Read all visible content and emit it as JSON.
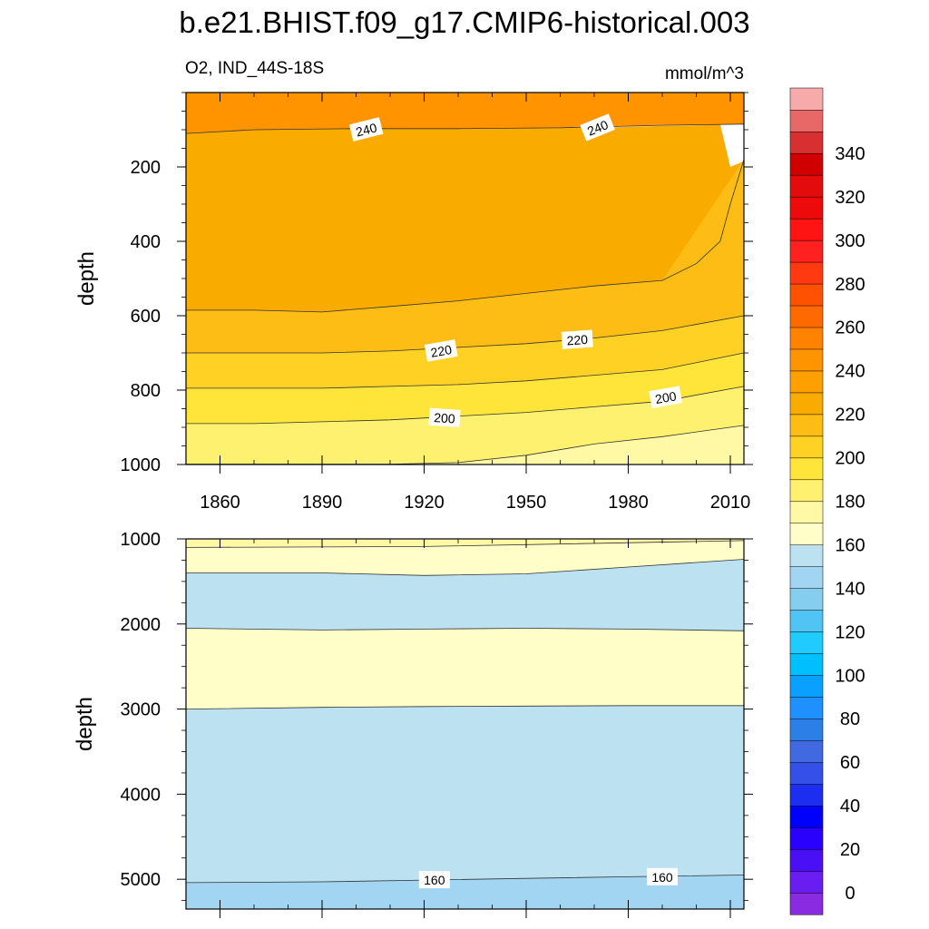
{
  "title": "b.e21.BHIST.f09_g17.CMIP6-historical.003",
  "chart_data": {
    "type": "contour",
    "variable_label": "O2, IND_44S-18S",
    "units_label": "mmol/m^3",
    "x_range": [
      1850,
      2014
    ],
    "x_ticks": [
      1860,
      1890,
      1920,
      1950,
      1980,
      2010
    ],
    "x_tick_labels": [
      "1860",
      "1890",
      "1920",
      "1950",
      "1980",
      "2010"
    ],
    "panels": [
      {
        "name": "upper",
        "ylabel": "depth",
        "y_range": [
          0,
          1000
        ],
        "y_ticks": [
          200,
          400,
          600,
          800,
          1000
        ],
        "y_tick_labels": [
          "200",
          "400",
          "600",
          "800",
          "1000"
        ],
        "bands": [
          {
            "level": 250,
            "color": "#FF9400",
            "x": [
              1850,
              1870,
              1900,
              1930,
              1960,
              1990,
              2014
            ],
            "top": [
              0,
              0,
              0,
              0,
              0,
              0,
              0
            ],
            "bottom": [
              110,
              100,
              97,
              97,
              95,
              88,
              85
            ]
          },
          {
            "level": 240,
            "color": "#FAAB00",
            "x": [
              1850,
              1870,
              1890,
              1910,
              1930,
              1950,
              1970,
              1990,
              2000,
              2007,
              2010,
              2014
            ],
            "top": [
              110,
              100,
              97,
              97,
              97,
              96,
              95,
              90,
              88,
              85,
              200,
              185
            ],
            "bottom": [
              585,
              585,
              590,
              575,
              560,
              540,
              520,
              505,
              460,
              400,
              300,
              180
            ]
          },
          {
            "level": 230,
            "color": "#FDBD14",
            "x": [
              1850,
              1870,
              1890,
              1910,
              1930,
              1950,
              1970,
              1990,
              2014
            ],
            "top": [
              585,
              585,
              590,
              575,
              560,
              540,
              520,
              505,
              180
            ],
            "bottom": [
              700,
              700,
              700,
              695,
              685,
              675,
              660,
              640,
              600
            ]
          },
          {
            "level": 220,
            "color": "#FED124",
            "x": [
              1850,
              1870,
              1890,
              1910,
              1930,
              1950,
              1970,
              1990,
              2014
            ],
            "top": [
              700,
              700,
              700,
              695,
              685,
              675,
              660,
              640,
              600
            ],
            "bottom": [
              795,
              795,
              795,
              790,
              785,
              775,
              760,
              745,
              700
            ]
          },
          {
            "level": 210,
            "color": "#FFE53A",
            "x": [
              1850,
              1870,
              1890,
              1910,
              1930,
              1950,
              1970,
              1990,
              2014
            ],
            "top": [
              795,
              795,
              795,
              790,
              785,
              775,
              760,
              745,
              700
            ],
            "bottom": [
              890,
              890,
              885,
              880,
              870,
              860,
              845,
              830,
              790
            ]
          },
          {
            "level": 200,
            "color": "#FFF170",
            "x": [
              1850,
              1870,
              1890,
              1910,
              1930,
              1950,
              1970,
              1990,
              2014
            ],
            "top": [
              890,
              890,
              885,
              880,
              870,
              860,
              845,
              830,
              790
            ],
            "bottom": [
              1000,
              1000,
              1000,
              1000,
              995,
              975,
              945,
              925,
              895
            ]
          },
          {
            "level": 190,
            "color": "#FFF9A6",
            "x": [
              1850,
              1930,
              1950,
              1970,
              1990,
              2014
            ],
            "top": [
              1000,
              995,
              975,
              945,
              925,
              895
            ],
            "bottom": [
              1000,
              1000,
              1000,
              1000,
              1000,
              1000
            ]
          }
        ],
        "contour_labels": [
          {
            "text": "240",
            "x": 1903,
            "y": 100,
            "angle": -14
          },
          {
            "text": "240",
            "x": 1971,
            "y": 95,
            "angle": -22
          },
          {
            "text": "220",
            "x": 1925,
            "y": 695,
            "angle": -10
          },
          {
            "text": "220",
            "x": 1965,
            "y": 665,
            "angle": -4
          },
          {
            "text": "200",
            "x": 1926,
            "y": 875,
            "angle": 4
          },
          {
            "text": "200",
            "x": 1991,
            "y": 820,
            "angle": -10
          }
        ]
      },
      {
        "name": "lower",
        "ylabel": "depth",
        "y_range": [
          1000,
          5350
        ],
        "y_ticks": [
          1000,
          2000,
          3000,
          4000,
          5000
        ],
        "y_tick_labels": [
          "1000",
          "2000",
          "3000",
          "4000",
          "5000"
        ],
        "bands": [
          {
            "level": 190,
            "color": "#FFF9A6",
            "x": [
              1850,
              1920,
              2014
            ],
            "top": [
              1000,
              1000,
              1000
            ],
            "bottom": [
              1100,
              1090,
              1020
            ]
          },
          {
            "level": 180,
            "color": "#FFFDC8",
            "x": [
              1850,
              1890,
              1920,
              1950,
              1980,
              2014
            ],
            "top": [
              1100,
              1100,
              1090,
              1070,
              1050,
              1020
            ],
            "bottom": [
              1400,
              1400,
              1430,
              1410,
              1330,
              1240
            ]
          },
          {
            "level": 170,
            "color": "#BCE2F2",
            "x": [
              1850,
              1890,
              1920,
              1950,
              1980,
              2014
            ],
            "top": [
              1400,
              1400,
              1430,
              1410,
              1330,
              1240
            ],
            "bottom": [
              2050,
              2070,
              2060,
              2050,
              2060,
              2080
            ]
          },
          {
            "level": 180,
            "color": "#FFFDC8",
            "x": [
              1850,
              1890,
              1920,
              1950,
              1980,
              2014
            ],
            "top": [
              2050,
              2070,
              2060,
              2050,
              2060,
              2080
            ],
            "bottom": [
              3000,
              2980,
              2970,
              2965,
              2960,
              2960
            ]
          },
          {
            "level": 170,
            "color": "#BCE2F2",
            "x": [
              1850,
              1890,
              1920,
              1950,
              1980,
              2014
            ],
            "top": [
              3000,
              2980,
              2970,
              2965,
              2960,
              2960
            ],
            "bottom": [
              5040,
              5030,
              5010,
              4990,
              4970,
              4950
            ]
          },
          {
            "level": 160,
            "color": "#A2D5F1",
            "x": [
              1850,
              1920,
              1980,
              2014
            ],
            "top": [
              5040,
              5010,
              4970,
              4950
            ],
            "bottom": [
              5350,
              5350,
              5350,
              5350
            ]
          }
        ],
        "contour_labels": [
          {
            "text": "160",
            "x": 1923,
            "y": 5010,
            "angle": 0
          },
          {
            "text": "160",
            "x": 1990,
            "y": 4975,
            "angle": 0
          }
        ]
      }
    ],
    "colorbar": {
      "colors": [
        "#8A2BE2",
        "#6A1DF0",
        "#4A10F5",
        "#2A00FF",
        "#0000FF",
        "#1E2EF0",
        "#3550E8",
        "#4169E1",
        "#2D7FE8",
        "#1E90FF",
        "#0AA0FF",
        "#00BFFF",
        "#1FCBFF",
        "#4FC4F5",
        "#86CEF0",
        "#A2D5F1",
        "#BCE2F2",
        "#FFFDC8",
        "#FFF9A6",
        "#FFF170",
        "#FFE53A",
        "#FED124",
        "#FDBD14",
        "#FAAB00",
        "#FF9F00",
        "#FF9400",
        "#FF8200",
        "#FF6A00",
        "#FF5200",
        "#FF3A10",
        "#FF2020",
        "#FF1414",
        "#EE0A0A",
        "#E30B0B",
        "#D10000",
        "#D83030",
        "#E86868",
        "#F7AAAA"
      ],
      "labels": [
        "0",
        "20",
        "40",
        "60",
        "80",
        "100",
        "120",
        "140",
        "160",
        "180",
        "200",
        "220",
        "240",
        "260",
        "280",
        "300",
        "320",
        "340"
      ],
      "label_every": 2,
      "label_offset": 1
    }
  }
}
